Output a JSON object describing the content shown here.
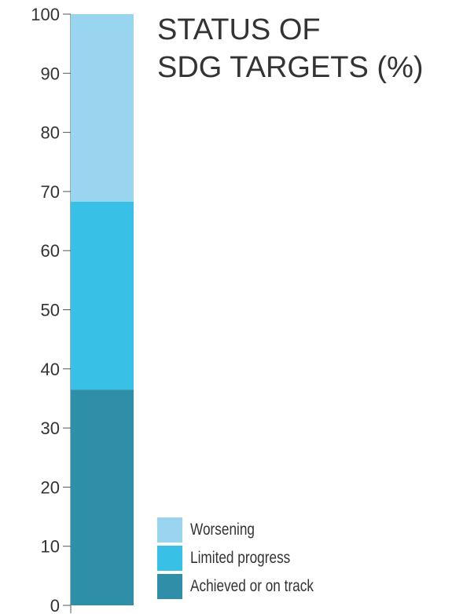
{
  "chart_data": {
    "type": "bar",
    "stacked": true,
    "title": [
      "STATUS OF",
      "SDG TARGETS (%)"
    ],
    "categories": [
      ""
    ],
    "ylim": [
      0,
      100
    ],
    "yticks": [
      0,
      10,
      20,
      30,
      40,
      50,
      60,
      70,
      80,
      90,
      100
    ],
    "grid": false,
    "legend_position": "bottom-right",
    "series": [
      {
        "name": "Achieved or on track",
        "values": [
          36.5
        ],
        "color": "#2f8fa8"
      },
      {
        "name": "Limited progress",
        "values": [
          31.8
        ],
        "color": "#38c0e6"
      },
      {
        "name": "Worsening",
        "values": [
          31.7
        ],
        "color": "#99d5ee"
      }
    ],
    "legend": [
      "Worsening",
      "Limited progress",
      "Achieved or on track"
    ]
  }
}
